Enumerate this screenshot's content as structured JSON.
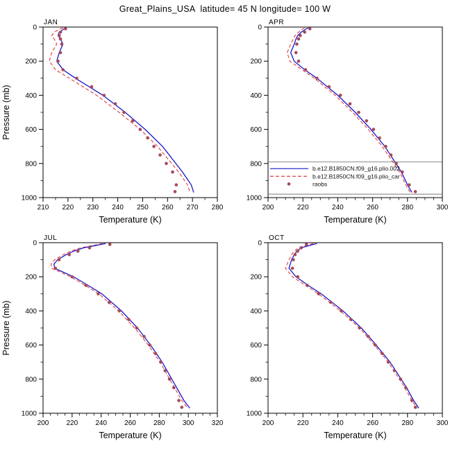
{
  "title": "Great_Plains_USA  latitude= 45 N longitude= 100 W",
  "chart_data": {
    "type": "line",
    "title": "Great_Plains_USA  latitude= 45 N longitude= 100 W",
    "x_axis_label": "Temperature (K)",
    "y_axis": {
      "label": "Pressure (mb)",
      "min": 0,
      "max": 1000,
      "tick_step": 200,
      "minor_step": 100,
      "inverted": true
    },
    "colors": {
      "model1": "#1616c8",
      "model2": "#e03c3c",
      "raobs": "#a6485a"
    },
    "series_names": [
      "b.e12.B1850CN.f09_g16.plio.002",
      "b.e12.B1850CN.f09_g16.plio_car",
      "raobs"
    ],
    "legend": {
      "panel": "APR",
      "sep_pressures": [
        790,
        980
      ],
      "entry_pressures": [
        830,
        875,
        920
      ],
      "entries": [
        {
          "label": "b.e12.B1850CN.f09_g16.plio.002",
          "marker": "line",
          "color": "#1616c8",
          "dash": ""
        },
        {
          "label": "b.e12.B1850CN.f09_g16.plio_car",
          "marker": "line",
          "color": "#e03c3c",
          "dash": "5,3"
        },
        {
          "label": "raobs",
          "marker": "dot",
          "color": "#a6485a",
          "dash": ""
        }
      ]
    },
    "panels": [
      {
        "label": "JAN",
        "x_min": 210,
        "x_max": 280,
        "x_tick_step": 10,
        "x_minor_step": 5,
        "model1": [
          [
            5,
            219
          ],
          [
            10,
            218.5
          ],
          [
            30,
            216.5
          ],
          [
            50,
            216
          ],
          [
            70,
            217
          ],
          [
            100,
            218
          ],
          [
            150,
            216.5
          ],
          [
            200,
            215.5
          ],
          [
            250,
            218
          ],
          [
            300,
            223
          ],
          [
            400,
            234
          ],
          [
            500,
            243
          ],
          [
            600,
            251
          ],
          [
            700,
            258
          ],
          [
            850,
            266
          ],
          [
            925,
            269.5
          ],
          [
            970,
            270.5
          ]
        ],
        "model2": [
          [
            5,
            218
          ],
          [
            10,
            217
          ],
          [
            30,
            214.5
          ],
          [
            50,
            213.5
          ],
          [
            70,
            214.5
          ],
          [
            100,
            215.5
          ],
          [
            150,
            213.5
          ],
          [
            200,
            212.5
          ],
          [
            250,
            215
          ],
          [
            300,
            220.5
          ],
          [
            400,
            231.5
          ],
          [
            500,
            240.5
          ],
          [
            600,
            249
          ],
          [
            700,
            256
          ],
          [
            850,
            264.5
          ],
          [
            925,
            268
          ],
          [
            970,
            269
          ]
        ],
        "raobs": [
          [
            10,
            219
          ],
          [
            30,
            217
          ],
          [
            50,
            216.5
          ],
          [
            70,
            217
          ],
          [
            100,
            217.5
          ],
          [
            150,
            217
          ],
          [
            200,
            216
          ],
          [
            250,
            218
          ],
          [
            300,
            223.5
          ],
          [
            350,
            229.5
          ],
          [
            400,
            234.5
          ],
          [
            450,
            239
          ],
          [
            500,
            242.5
          ],
          [
            550,
            246
          ],
          [
            600,
            249
          ],
          [
            650,
            252
          ],
          [
            700,
            254.5
          ],
          [
            750,
            257
          ],
          [
            800,
            259.5
          ],
          [
            850,
            262
          ],
          [
            925,
            263.5
          ],
          [
            965,
            263
          ]
        ]
      },
      {
        "label": "APR",
        "x_min": 200,
        "x_max": 300,
        "x_tick_step": 20,
        "x_minor_step": 5,
        "model1": [
          [
            5,
            223
          ],
          [
            10,
            222
          ],
          [
            30,
            219
          ],
          [
            50,
            217
          ],
          [
            70,
            216
          ],
          [
            100,
            215
          ],
          [
            150,
            213
          ],
          [
            200,
            215
          ],
          [
            250,
            221
          ],
          [
            300,
            228
          ],
          [
            400,
            240
          ],
          [
            500,
            250
          ],
          [
            600,
            259
          ],
          [
            700,
            267
          ],
          [
            850,
            276.5
          ],
          [
            925,
            280
          ],
          [
            970,
            282.5
          ]
        ],
        "model2": [
          [
            5,
            221
          ],
          [
            10,
            220
          ],
          [
            30,
            217.5
          ],
          [
            50,
            215.5
          ],
          [
            70,
            214.5
          ],
          [
            100,
            213
          ],
          [
            150,
            211
          ],
          [
            200,
            212.5
          ],
          [
            250,
            219.5
          ],
          [
            300,
            226.5
          ],
          [
            400,
            238.5
          ],
          [
            500,
            248.5
          ],
          [
            600,
            257.5
          ],
          [
            700,
            265.5
          ],
          [
            850,
            275.5
          ],
          [
            925,
            279
          ],
          [
            970,
            281.5
          ]
        ],
        "raobs": [
          [
            10,
            224
          ],
          [
            30,
            221
          ],
          [
            50,
            218.5
          ],
          [
            70,
            217.5
          ],
          [
            100,
            216.5
          ],
          [
            150,
            216
          ],
          [
            200,
            217.5
          ],
          [
            250,
            221.5
          ],
          [
            300,
            228
          ],
          [
            350,
            235
          ],
          [
            400,
            241.5
          ],
          [
            450,
            247
          ],
          [
            500,
            252
          ],
          [
            550,
            256.5
          ],
          [
            600,
            260.5
          ],
          [
            650,
            264
          ],
          [
            700,
            267.5
          ],
          [
            750,
            270.5
          ],
          [
            800,
            273.5
          ],
          [
            850,
            277
          ],
          [
            925,
            281
          ],
          [
            965,
            284.5
          ]
        ]
      },
      {
        "label": "JUL",
        "x_min": 200,
        "x_max": 320,
        "x_tick_step": 20,
        "x_minor_step": 5,
        "model1": [
          [
            5,
            243
          ],
          [
            10,
            240
          ],
          [
            30,
            228
          ],
          [
            50,
            221
          ],
          [
            70,
            216
          ],
          [
            100,
            210
          ],
          [
            125,
            207.5
          ],
          [
            150,
            208
          ],
          [
            200,
            221
          ],
          [
            250,
            231
          ],
          [
            300,
            240.5
          ],
          [
            400,
            254
          ],
          [
            500,
            265
          ],
          [
            600,
            274
          ],
          [
            700,
            282
          ],
          [
            850,
            292
          ],
          [
            925,
            297
          ],
          [
            970,
            301
          ]
        ],
        "model2": [
          [
            5,
            241
          ],
          [
            10,
            238
          ],
          [
            30,
            226
          ],
          [
            50,
            219
          ],
          [
            70,
            214
          ],
          [
            100,
            208
          ],
          [
            125,
            205.5
          ],
          [
            150,
            206
          ],
          [
            200,
            219
          ],
          [
            250,
            229
          ],
          [
            300,
            238.5
          ],
          [
            400,
            252
          ],
          [
            500,
            263
          ],
          [
            600,
            272.5
          ],
          [
            700,
            280.5
          ],
          [
            850,
            290.5
          ],
          [
            925,
            295.5
          ],
          [
            970,
            299.5
          ]
        ],
        "raobs": [
          [
            10,
            246
          ],
          [
            30,
            232
          ],
          [
            50,
            224
          ],
          [
            70,
            218
          ],
          [
            100,
            211
          ],
          [
            150,
            208.5
          ],
          [
            200,
            220
          ],
          [
            250,
            229.5
          ],
          [
            300,
            238
          ],
          [
            350,
            245.5
          ],
          [
            400,
            252.5
          ],
          [
            450,
            259
          ],
          [
            500,
            264.5
          ],
          [
            550,
            269.5
          ],
          [
            600,
            273.5
          ],
          [
            650,
            277.5
          ],
          [
            700,
            281
          ],
          [
            750,
            284
          ],
          [
            800,
            287
          ],
          [
            850,
            290
          ],
          [
            925,
            293.5
          ],
          [
            965,
            295.5
          ]
        ]
      },
      {
        "label": "OCT",
        "x_min": 200,
        "x_max": 300,
        "x_tick_step": 20,
        "x_minor_step": 5,
        "model1": [
          [
            5,
            228
          ],
          [
            10,
            226
          ],
          [
            30,
            219
          ],
          [
            50,
            216.5
          ],
          [
            70,
            215
          ],
          [
            100,
            213.5
          ],
          [
            150,
            212
          ],
          [
            200,
            216
          ],
          [
            250,
            223
          ],
          [
            300,
            230.5
          ],
          [
            400,
            243
          ],
          [
            500,
            253.5
          ],
          [
            600,
            262
          ],
          [
            700,
            270
          ],
          [
            850,
            279.5
          ],
          [
            925,
            283.5
          ],
          [
            970,
            286.5
          ]
        ],
        "model2": [
          [
            5,
            226
          ],
          [
            10,
            224
          ],
          [
            30,
            217.5
          ],
          [
            50,
            215
          ],
          [
            70,
            213.5
          ],
          [
            100,
            212
          ],
          [
            150,
            210
          ],
          [
            200,
            214
          ],
          [
            250,
            221.5
          ],
          [
            300,
            229
          ],
          [
            400,
            241.5
          ],
          [
            500,
            252.5
          ],
          [
            600,
            261
          ],
          [
            700,
            269
          ],
          [
            850,
            278.5
          ],
          [
            925,
            282.5
          ],
          [
            970,
            285.5
          ]
        ],
        "raobs": [
          [
            10,
            222
          ],
          [
            30,
            219
          ],
          [
            50,
            217
          ],
          [
            70,
            215.5
          ],
          [
            100,
            214.5
          ],
          [
            150,
            214
          ],
          [
            200,
            217
          ],
          [
            250,
            222.5
          ],
          [
            300,
            229
          ],
          [
            350,
            236
          ],
          [
            400,
            242
          ],
          [
            450,
            247.5
          ],
          [
            500,
            252.5
          ],
          [
            550,
            257.5
          ],
          [
            600,
            261.5
          ],
          [
            650,
            265.5
          ],
          [
            700,
            269
          ],
          [
            750,
            272.5
          ],
          [
            800,
            276
          ],
          [
            850,
            279
          ],
          [
            925,
            282.5
          ],
          [
            965,
            284.5
          ]
        ]
      }
    ]
  }
}
